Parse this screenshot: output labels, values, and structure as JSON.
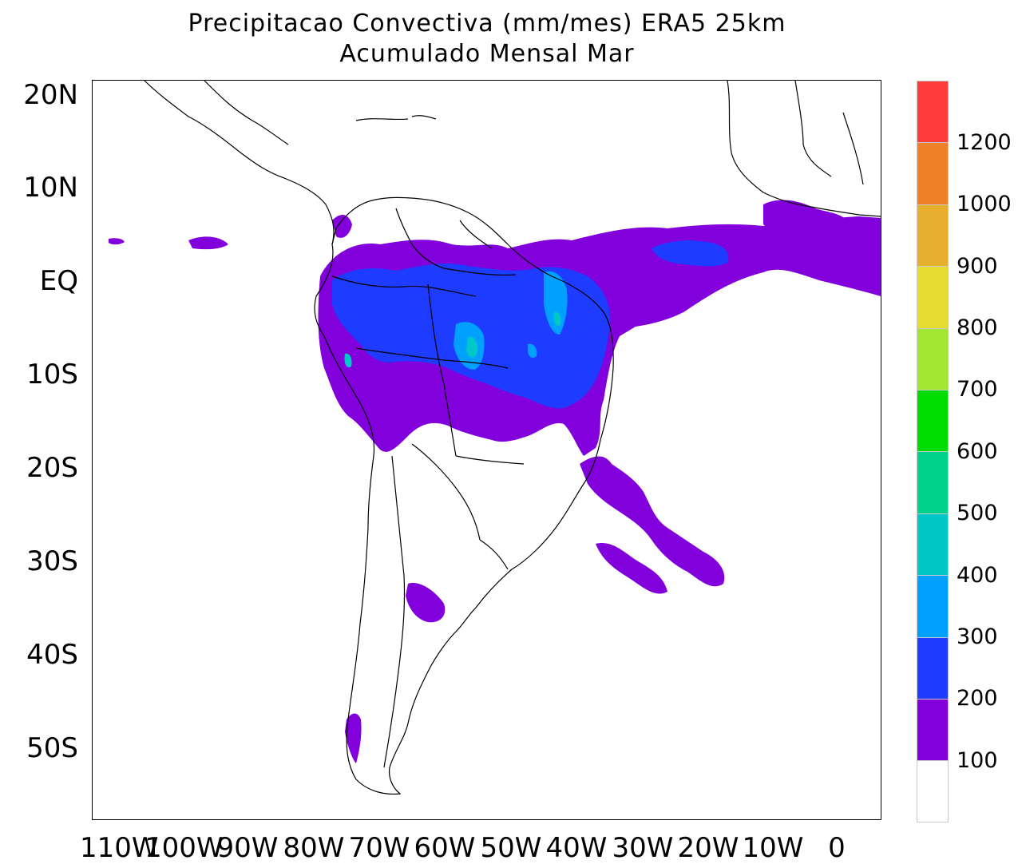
{
  "title": {
    "line1": "Precipitacao Convectiva (mm/mes) ERA5  25km",
    "line2": "Acumulado Mensal Mar"
  },
  "axes": {
    "lat_labels": [
      "20N",
      "10N",
      "EQ",
      "10S",
      "20S",
      "30S",
      "40S",
      "50S"
    ],
    "lon_labels": [
      "110W",
      "100W",
      "90W",
      "80W",
      "70W",
      "60W",
      "50W",
      "40W",
      "30W",
      "20W",
      "10W",
      "0"
    ]
  },
  "colorbar": {
    "levels": [
      "1200",
      "1000",
      "900",
      "800",
      "700",
      "600",
      "500",
      "400",
      "300",
      "200",
      "100"
    ],
    "colors": [
      "#ff3c3c",
      "#f08028",
      "#e6af2d",
      "#e6dc32",
      "#a0e632",
      "#00dc00",
      "#00d28c",
      "#00c8c8",
      "#00a0ff",
      "#1e3cff",
      "#8200dc",
      "#ffffff"
    ]
  },
  "chart_data": {
    "type": "heatmap",
    "title": "Precipitacao Convectiva (mm/mes) ERA5  25km",
    "subtitle": "Acumulado Mensal Mar",
    "variable": "convective precipitation (mm/month)",
    "xlim": [
      -113,
      6
    ],
    "ylim": [
      -58,
      21
    ],
    "levels": [
      100,
      200,
      300,
      400,
      500,
      600,
      700,
      800,
      900,
      1000,
      1200
    ]
  }
}
